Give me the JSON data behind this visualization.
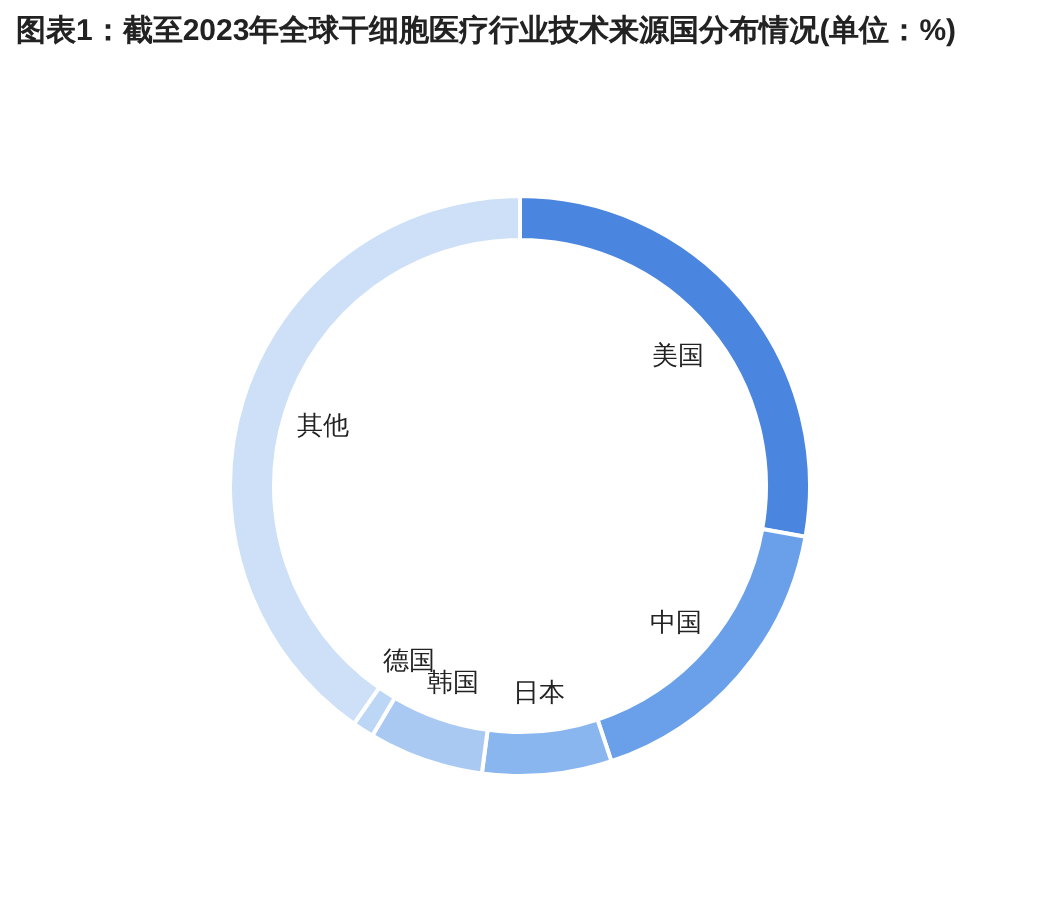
{
  "chart_data": {
    "type": "donut",
    "title": "图表1：截至2023年全球干细胞医疗行业技术来源国分布情况(单位：%)",
    "categories": [
      "美国",
      "中国",
      "日本",
      "韩国",
      "德国",
      "其他"
    ],
    "values": [
      27.8,
      17.1,
      7.2,
      6.4,
      1.2,
      40.3
    ],
    "colors": [
      "#4a86e0",
      "#6aa0ea",
      "#8ab6ef",
      "#a9c9f3",
      "#bcd6f6",
      "#cde0f8"
    ]
  }
}
